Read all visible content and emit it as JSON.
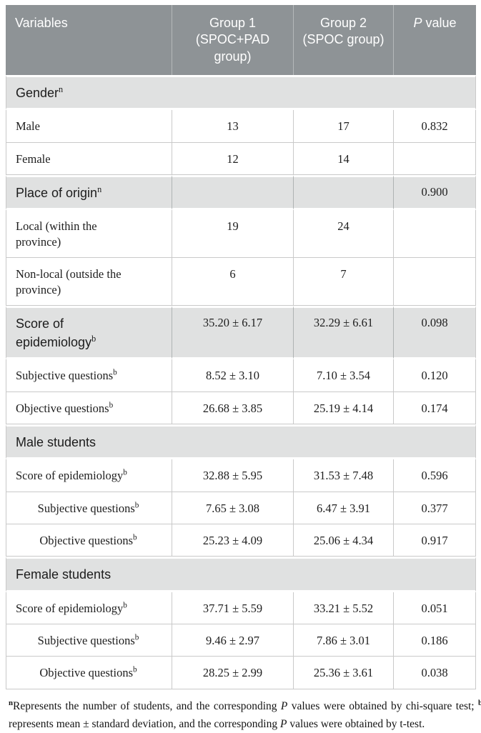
{
  "table": {
    "header": {
      "columns": [
        {
          "text": "Variables"
        },
        {
          "text": "Group 1 (SPOC+PAD group)"
        },
        {
          "text": "Group 2 (SPOC group)"
        },
        {
          "italic_lead": "P",
          "text": " value"
        }
      ]
    },
    "rows": [
      {
        "type": "band-full",
        "label": "Gender",
        "sup": "n"
      },
      {
        "type": "data",
        "label": "Male",
        "g1": "13",
        "g2": "17",
        "p": "0.832"
      },
      {
        "type": "data",
        "label": "Female",
        "g1": "12",
        "g2": "14",
        "p": ""
      },
      {
        "type": "band-cells",
        "label": "Place of origin",
        "sup": "n",
        "g1": "",
        "g2": "",
        "p": "0.900"
      },
      {
        "type": "data",
        "wrap": true,
        "label": "Local (within the province)",
        "g1": "19",
        "g2": "24",
        "p": ""
      },
      {
        "type": "data",
        "wrap": true,
        "label": "Non-local (outside the province)",
        "g1": "6",
        "g2": "7",
        "p": ""
      },
      {
        "type": "band-cells",
        "wrap": true,
        "label": "Score of epidemiology",
        "sup": "b",
        "g1": "35.20 ± 6.17",
        "g2": "32.29 ± 6.61",
        "p": "0.098"
      },
      {
        "type": "data",
        "label": "Subjective questions",
        "sup": "b",
        "g1": "8.52 ± 3.10",
        "g2": "7.10 ± 3.54",
        "p": "0.120"
      },
      {
        "type": "data",
        "label": "Objective questions",
        "sup": "b",
        "g1": "26.68 ± 3.85",
        "g2": "25.19 ± 4.14",
        "p": "0.174"
      },
      {
        "type": "band-full",
        "label": "Male students"
      },
      {
        "type": "data",
        "label": "Score of epidemiology",
        "sup": "b",
        "g1": "32.88 ± 5.95",
        "g2": "31.53 ± 7.48",
        "p": "0.596"
      },
      {
        "type": "data",
        "indent": true,
        "label": "Subjective questions",
        "sup": "b",
        "g1": "7.65 ± 3.08",
        "g2": "6.47 ± 3.91",
        "p": "0.377"
      },
      {
        "type": "data",
        "indent": true,
        "label": "Objective questions",
        "sup": "b",
        "g1": "25.23 ± 4.09",
        "g2": "25.06 ± 4.34",
        "p": "0.917"
      },
      {
        "type": "band-full",
        "label": "Female students"
      },
      {
        "type": "data",
        "label": "Score of epidemiology",
        "sup": "b",
        "g1": "37.71 ± 5.59",
        "g2": "33.21 ± 5.52",
        "p": "0.051"
      },
      {
        "type": "data",
        "indent": true,
        "label": "Subjective questions",
        "sup": "b",
        "g1": "9.46 ± 2.97",
        "g2": "7.86 ± 3.01",
        "p": "0.186"
      },
      {
        "type": "data",
        "indent": true,
        "label": "Objective questions",
        "sup": "b",
        "g1": "28.25 ± 2.99",
        "g2": "25.36 ± 3.61",
        "p": "0.038"
      }
    ],
    "footnote_parts": [
      {
        "sup": "n"
      },
      {
        "t": "Represents the number of students, and the corresponding "
      },
      {
        "i": "P"
      },
      {
        "t": " values were obtained by chi-square test; "
      },
      {
        "sup": "b"
      },
      {
        "t": " represents mean ± standard deviation, and the corresponding "
      },
      {
        "i": "P"
      },
      {
        "t": " values were obtained by t-test."
      }
    ],
    "colors": {
      "header_bg": "#8e9396",
      "header_text": "#ffffff",
      "band_bg": "#e0e1e1",
      "border": "#c9c9c9"
    }
  }
}
